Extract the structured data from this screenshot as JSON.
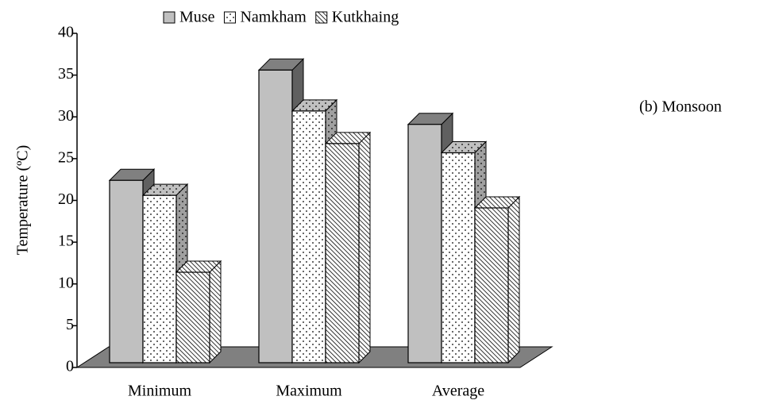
{
  "chart_data": {
    "type": "bar3d",
    "y_label": "Temperature (ºC)",
    "annotation": "(b) Monsoon",
    "categories": [
      "Minimum",
      "Maximum",
      "Average"
    ],
    "series": [
      {
        "name": "Muse",
        "color": "#c0c0c0",
        "pattern": "solid",
        "values": [
          22.4,
          35.6,
          29.1
        ]
      },
      {
        "name": "Namkham",
        "color": "#ffffff",
        "pattern": "dots",
        "values": [
          20.6,
          30.7,
          25.7
        ]
      },
      {
        "name": "Kutkhaing",
        "color": "#ffffff",
        "pattern": "hatch",
        "values": [
          11.4,
          26.8,
          19.1
        ]
      }
    ],
    "ylim": [
      0,
      40
    ],
    "yticks": [
      0,
      5,
      10,
      15,
      20,
      25,
      30,
      35,
      40
    ],
    "legend": "top"
  }
}
